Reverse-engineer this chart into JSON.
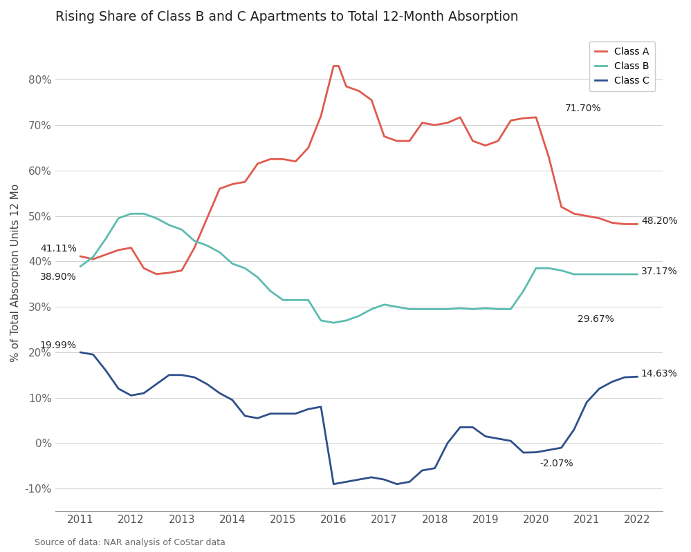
{
  "title": "Rising Share of Class B and C Apartments to Total 12-Month Absorption",
  "ylabel": "% of Total Absorption Units 12 Mo",
  "source": "Source of data: NAR analysis of CoStar data",
  "background_color": "#ffffff",
  "class_a": {
    "label": "Class A",
    "color": "#e05a4e",
    "x": [
      2011.0,
      2011.25,
      2011.5,
      2011.75,
      2012.0,
      2012.25,
      2012.5,
      2012.75,
      2013.0,
      2013.25,
      2013.5,
      2013.75,
      2014.0,
      2014.25,
      2014.5,
      2014.75,
      2015.0,
      2015.25,
      2015.5,
      2015.75,
      2016.0,
      2016.1,
      2016.25,
      2016.5,
      2016.75,
      2017.0,
      2017.25,
      2017.5,
      2017.75,
      2018.0,
      2018.25,
      2018.5,
      2018.75,
      2019.0,
      2019.25,
      2019.5,
      2019.75,
      2020.0,
      2020.25,
      2020.5,
      2020.75,
      2021.0,
      2021.25,
      2021.5,
      2021.75,
      2022.0
    ],
    "y": [
      41.11,
      40.5,
      41.5,
      42.5,
      43.0,
      38.5,
      37.2,
      37.5,
      38.0,
      43.0,
      49.5,
      56.0,
      57.0,
      57.5,
      61.5,
      62.5,
      62.5,
      62.0,
      65.0,
      72.0,
      83.0,
      83.0,
      78.5,
      77.5,
      75.5,
      67.5,
      66.5,
      66.5,
      70.5,
      70.0,
      70.5,
      71.7,
      66.5,
      65.5,
      66.5,
      71.0,
      71.5,
      71.7,
      63.0,
      52.0,
      50.5,
      50.0,
      49.5,
      48.5,
      48.2,
      48.2
    ]
  },
  "class_b": {
    "label": "Class B",
    "color": "#5bbcb0",
    "x": [
      2011.0,
      2011.25,
      2011.5,
      2011.75,
      2012.0,
      2012.25,
      2012.5,
      2012.75,
      2013.0,
      2013.25,
      2013.5,
      2013.75,
      2014.0,
      2014.25,
      2014.5,
      2014.75,
      2015.0,
      2015.25,
      2015.5,
      2015.75,
      2016.0,
      2016.25,
      2016.5,
      2016.75,
      2017.0,
      2017.25,
      2017.5,
      2017.75,
      2018.0,
      2018.25,
      2018.5,
      2018.75,
      2019.0,
      2019.25,
      2019.5,
      2019.75,
      2020.0,
      2020.25,
      2020.5,
      2020.75,
      2021.0,
      2021.25,
      2021.5,
      2021.75,
      2022.0
    ],
    "y": [
      38.9,
      41.0,
      45.0,
      49.5,
      50.5,
      50.5,
      49.5,
      48.0,
      47.0,
      44.5,
      43.5,
      42.0,
      39.5,
      38.5,
      36.5,
      33.5,
      31.5,
      31.5,
      31.5,
      27.0,
      26.5,
      27.0,
      28.0,
      29.5,
      30.5,
      30.0,
      29.5,
      29.5,
      29.5,
      29.5,
      29.67,
      29.5,
      29.67,
      29.5,
      29.5,
      33.5,
      38.5,
      38.5,
      38.0,
      37.17,
      37.17,
      37.17,
      37.17,
      37.17,
      37.17
    ]
  },
  "class_c": {
    "label": "Class C",
    "color": "#2e4f8a",
    "x": [
      2011.0,
      2011.25,
      2011.5,
      2011.75,
      2012.0,
      2012.25,
      2012.5,
      2012.75,
      2013.0,
      2013.25,
      2013.5,
      2013.75,
      2014.0,
      2014.25,
      2014.5,
      2014.75,
      2015.0,
      2015.25,
      2015.5,
      2015.75,
      2016.0,
      2016.25,
      2016.5,
      2016.75,
      2017.0,
      2017.25,
      2017.5,
      2017.75,
      2018.0,
      2018.25,
      2018.5,
      2018.75,
      2019.0,
      2019.25,
      2019.5,
      2019.75,
      2020.0,
      2020.25,
      2020.5,
      2020.75,
      2021.0,
      2021.25,
      2021.5,
      2021.75,
      2022.0
    ],
    "y": [
      19.99,
      19.5,
      16.0,
      12.0,
      10.5,
      11.0,
      13.0,
      15.0,
      15.0,
      14.5,
      13.0,
      11.0,
      9.5,
      6.0,
      5.5,
      6.5,
      6.5,
      6.5,
      7.5,
      8.0,
      -9.0,
      -8.5,
      -8.0,
      -7.5,
      -8.0,
      -9.0,
      -8.5,
      -6.0,
      -5.5,
      0.0,
      3.5,
      3.5,
      1.5,
      1.0,
      0.5,
      -2.07,
      -2.0,
      -1.5,
      -1.0,
      3.0,
      9.0,
      12.0,
      13.5,
      14.5,
      14.63
    ]
  }
}
